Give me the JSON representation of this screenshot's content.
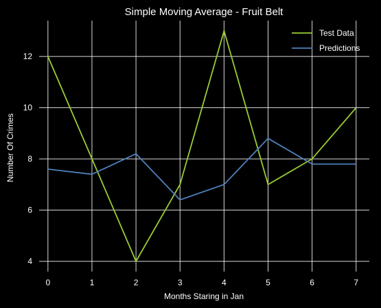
{
  "chart_data": {
    "type": "line",
    "title": "Simple Moving Average - Fruit Belt",
    "xlabel": "Months Staring in Jan",
    "ylabel": "Number Of Crimes",
    "x": [
      0,
      1,
      2,
      3,
      4,
      5,
      6,
      7
    ],
    "xticks": [
      0,
      1,
      2,
      3,
      4,
      5,
      6,
      7
    ],
    "yticks": [
      4,
      6,
      8,
      10,
      12
    ],
    "xlim": [
      -0.2,
      7.3
    ],
    "ylim": [
      3.6,
      13.4
    ],
    "grid": true,
    "legend_position": "top-right",
    "background": "#000000",
    "series": [
      {
        "name": "Test Data",
        "color": "#9acd32",
        "values": [
          12,
          8,
          4,
          7,
          13,
          7,
          8,
          10
        ]
      },
      {
        "name": "Predictions",
        "color": "#4f81bd",
        "values": [
          7.6,
          7.4,
          8.2,
          6.4,
          7.0,
          8.8,
          7.8,
          7.8
        ]
      }
    ]
  }
}
